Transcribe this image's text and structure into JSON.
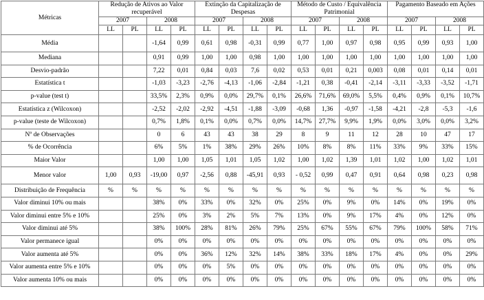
{
  "table": {
    "corner": "Métricas",
    "groups": [
      "Redução  de Ativos ao Valor recuperável",
      "Extinção da Capitalização de Despesas",
      "Método de Custo / Equivalência Patrimonial",
      "Pagamento Baseado em Ações"
    ],
    "years": [
      "2007",
      "2008"
    ],
    "subheads": [
      "LL",
      "PL"
    ],
    "rows": [
      {
        "label": "Média",
        "cells": [
          null,
          null,
          "-1,64",
          "0,99",
          "0,61",
          "0,98",
          "-0,31",
          "0,99",
          "0,77",
          "1,00",
          "0,97",
          "0,98",
          "0,95",
          "0,99",
          "0,93",
          "1,00"
        ]
      },
      {
        "label": "Mediana",
        "cells": [
          null,
          null,
          "0,91",
          "0,99",
          "1,00",
          "1,00",
          "0,98",
          "1,00",
          "1,00",
          "1,00",
          "1,00",
          "1,00",
          "1,00",
          "1,00",
          "1,00",
          "1,00"
        ]
      },
      {
        "label": "Desvio-padrão",
        "cells": [
          null,
          null,
          "7,22",
          "0,01",
          "0,84",
          "0,03",
          "7,6",
          "0,02",
          "0,53",
          "0,01",
          "0,21",
          "0,003",
          "0,08",
          "0,01",
          "0,14",
          "0,01"
        ]
      },
      {
        "label": "Estatística t",
        "cells": [
          null,
          null,
          "-1,03",
          "-3,23",
          "-2,76",
          "-4,13",
          "-1,06",
          "-2,84",
          "-1,21",
          "0,38",
          "-0,41",
          "-2,14",
          "-3,11",
          "-3,33",
          "-3,52",
          "-1,71"
        ]
      },
      {
        "label": "p-value (test t)",
        "cells": [
          null,
          null,
          "33,5%",
          "2,3%",
          "0,9%",
          "0,0%",
          "29,7%",
          "0,1%",
          "26,6%",
          "71,6%",
          "69,0%",
          "5,5%",
          "0,4%",
          "0,9%",
          "0,1%",
          "10,7%"
        ]
      },
      {
        "label": "Estatística z (Wilcoxon)",
        "cells": [
          null,
          null,
          "-2,52",
          "-2,02",
          "-2,92",
          "-4,51",
          "-1,88",
          "-3,09",
          "-0,68",
          "1,36",
          "-0,97",
          "-1,58",
          "-4,21",
          "-2,8",
          "-5,3",
          "-1,6"
        ]
      },
      {
        "label": "p-value (teste de Wilcoxon)",
        "cells": [
          null,
          null,
          "0,7%",
          "1,8%",
          "0,1%",
          "0,0%",
          "0,7%",
          "0,0%",
          "14,7%",
          "27,7%",
          "9,9%",
          "1,9%",
          "0,0%",
          "3,0%",
          "0,0%",
          "3,2%"
        ]
      },
      {
        "label": "Nº de Observações",
        "cells": [
          null,
          null,
          "0",
          "6",
          "43",
          "43",
          "38",
          "29",
          "8",
          "9",
          "11",
          "12",
          "28",
          "10",
          "47",
          "17"
        ]
      },
      {
        "label": "% de Ocorrência",
        "cells": [
          null,
          null,
          "6%",
          "5%",
          "1%",
          "38%",
          "29%",
          "26%",
          "10%",
          "8%",
          "8%",
          "11%",
          "33%",
          "9%",
          "33%",
          "15%"
        ]
      },
      {
        "label": "Maior Valor",
        "cells": [
          null,
          null,
          "1,00",
          "1,00",
          "1,05",
          "1,01",
          "1,05",
          "1,02",
          "1,00",
          "1,02",
          "1,39",
          "1,01",
          "1,02",
          "1,00",
          "1,02",
          "1,01"
        ]
      },
      {
        "label": "Menor valor",
        "cells": [
          "1,00",
          "0,93",
          "-19,00",
          "0,97",
          "-2,56",
          "0,88",
          "-45,91",
          "0,93",
          "- 0,52",
          "0,99",
          "0,47",
          "0,91",
          "0,64",
          "0,98",
          "0,23",
          "0,98"
        ]
      },
      {
        "label": "Distribuição de Frequência",
        "cells": [
          "%",
          "%",
          "%",
          "%",
          "%",
          "%",
          "%",
          "%",
          "%",
          "%",
          "%",
          "%",
          "%",
          "%",
          "%",
          "%"
        ]
      },
      {
        "label": "Valor diminui 10% ou mais",
        "cells": [
          null,
          null,
          "38%",
          "0%",
          "33%",
          "0%",
          "32%",
          "0%",
          "25%",
          "0%",
          "9%",
          "0%",
          "14%",
          "0%",
          "19%",
          "0%"
        ]
      },
      {
        "label": "Valor diminui entre 5% e 10%",
        "cells": [
          null,
          null,
          "25%",
          "0%",
          "3%",
          "2%",
          "5%",
          "7%",
          "13%",
          "0%",
          "9%",
          "17%",
          "4%",
          "0%",
          "12%",
          "0%"
        ]
      },
      {
        "label": "Valor diminui até 5%",
        "cells": [
          null,
          null,
          "38%",
          "100%",
          "28%",
          "81%",
          "26%",
          "79%",
          "25%",
          "67%",
          "55%",
          "67%",
          "79%",
          "100%",
          "58%",
          "71%"
        ]
      },
      {
        "label": "Valor permanece igual",
        "cells": [
          null,
          null,
          "0%",
          "0%",
          "0%",
          "0%",
          "0%",
          "0%",
          "0%",
          "0%",
          "0%",
          "0%",
          "0%",
          "0%",
          "0%",
          "0%"
        ]
      },
      {
        "label": "Valor aumenta até 5%",
        "cells": [
          null,
          null,
          "0%",
          "0%",
          "36%",
          "12%",
          "32%",
          "14%",
          "38%",
          "33%",
          "18%",
          "17%",
          "4%",
          "0%",
          "0%",
          "29%"
        ]
      },
      {
        "label": "Valor aumenta entre 5% e 10%",
        "cells": [
          null,
          null,
          "0%",
          "0%",
          "0%",
          "5%",
          "0%",
          "0%",
          "0%",
          "0%",
          "0%",
          "0%",
          "0%",
          "0%",
          "0%",
          "0%"
        ]
      },
      {
        "label": "Valor aumenta 10% ou mais",
        "cells": [
          null,
          null,
          "0%",
          "0%",
          "0%",
          "0%",
          "0%",
          "0%",
          "0%",
          "0%",
          "0%",
          "0%",
          "0%",
          "0%",
          "0%",
          "0%"
        ]
      }
    ]
  }
}
